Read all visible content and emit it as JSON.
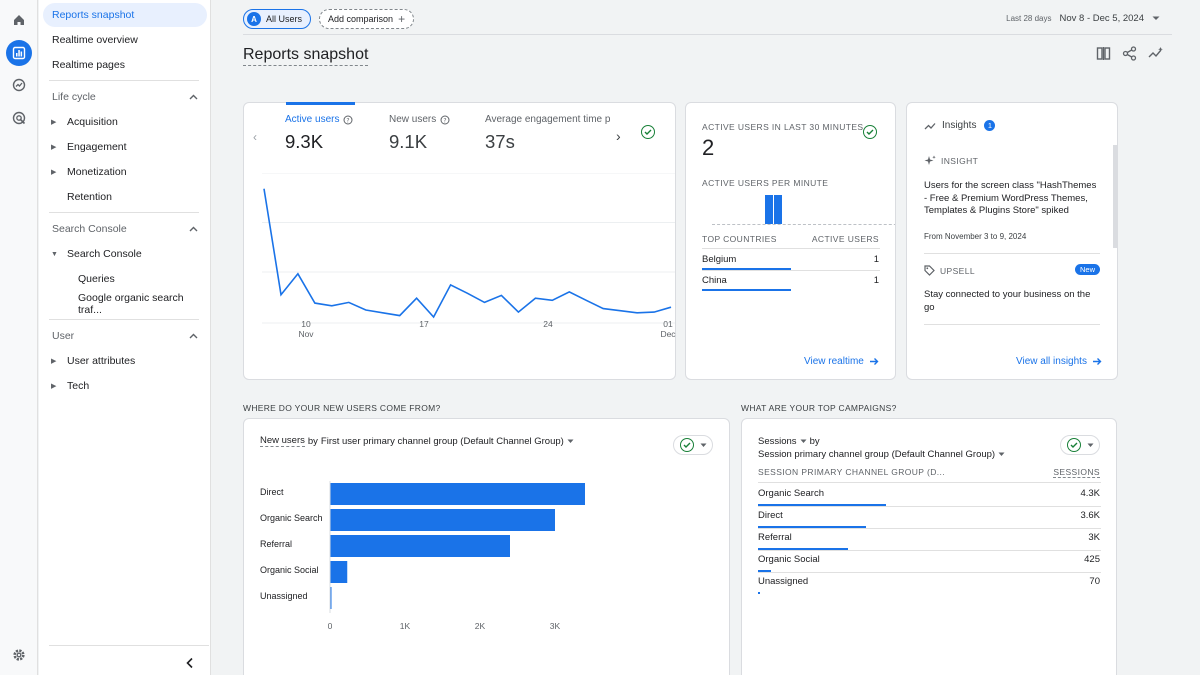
{
  "nav": {
    "items": [
      {
        "label": "Reports snapshot"
      },
      {
        "label": "Realtime overview"
      },
      {
        "label": "Realtime pages"
      }
    ],
    "lifecycle": {
      "title": "Life cycle",
      "items": [
        "Acquisition",
        "Engagement",
        "Monetization",
        "Retention"
      ]
    },
    "search_console": {
      "title": "Search Console",
      "group": "Search Console",
      "items": [
        "Queries",
        "Google organic search traf..."
      ]
    },
    "user": {
      "title": "User",
      "items": [
        "User attributes",
        "Tech"
      ]
    }
  },
  "topbar": {
    "all_users_avatar": "A",
    "all_users": "All Users",
    "add_comparison": "Add comparison",
    "date_label": "Last 28 days",
    "date_range": "Nov 8 - Dec 5, 2024"
  },
  "page_title": "Reports snapshot",
  "metrics": {
    "tabs": [
      {
        "label": "Active users",
        "value": "9.3K"
      },
      {
        "label": "New users",
        "value": "9.1K"
      },
      {
        "label": "Average engagement time p",
        "value": "37s"
      }
    ],
    "x_ticks": [
      {
        "day": "10",
        "month": "Nov"
      },
      {
        "day": "17",
        "month": ""
      },
      {
        "day": "24",
        "month": ""
      },
      {
        "day": "01",
        "month": "Dec"
      }
    ]
  },
  "chart_data": {
    "type": "line",
    "series": [
      {
        "values": [
          9200,
          1600,
          3100,
          1000,
          800,
          1050,
          500,
          300,
          100,
          1350,
          0,
          2300,
          1700,
          1050,
          1550,
          350,
          1350,
          1200,
          1800,
          1200,
          600,
          450,
          300,
          350,
          700
        ]
      }
    ],
    "x_ticks": [
      "10 Nov",
      "17",
      "24",
      "01 Dec"
    ]
  },
  "realtime": {
    "title": "ACTIVE USERS IN LAST 30 MINUTES",
    "value": "2",
    "per_minute_label": "ACTIVE USERS PER MINUTE",
    "col_country": "TOP COUNTRIES",
    "col_users": "ACTIVE USERS",
    "rows": [
      {
        "country": "Belgium",
        "users": "1"
      },
      {
        "country": "China",
        "users": "1"
      }
    ],
    "link": "View realtime"
  },
  "insights": {
    "title": "Insights",
    "badge": "1",
    "insight_label": "INSIGHT",
    "insight_text": "Users for the screen class \"HashThemes - Free & Premium WordPress Themes, Templates & Plugins Store\" spiked",
    "insight_date": "From November 3 to 9, 2024",
    "upsell_label": "UPSELL",
    "upsell_badge": "New",
    "upsell_text": "Stay connected to your business on the go",
    "link": "View all insights"
  },
  "new_users": {
    "section": "WHERE DO YOUR NEW USERS COME FROM?",
    "metric": "New users",
    "by": "by",
    "dimension": "First user primary channel group (Default Channel Group)",
    "categories": [
      "Direct",
      "Organic Search",
      "Referral",
      "Organic Social",
      "Unassigned"
    ],
    "values": [
      3400,
      3000,
      2400,
      230,
      10
    ],
    "x_ticks": [
      "0",
      "1K",
      "2K",
      "3K"
    ],
    "xmax": 4000
  },
  "campaigns": {
    "section": "WHAT ARE YOUR TOP CAMPAIGNS?",
    "metric": "Sessions",
    "by": "by",
    "dimension": "Session primary channel group (Default Channel Group)",
    "col_dim": "SESSION PRIMARY CHANNEL GROUP (D...",
    "col_val": "SESSIONS",
    "rows": [
      {
        "label": "Organic Search",
        "value": "4.3K",
        "share": 1.0
      },
      {
        "label": "Direct",
        "value": "3.6K",
        "share": 0.84
      },
      {
        "label": "Referral",
        "value": "3K",
        "share": 0.7
      },
      {
        "label": "Organic Social",
        "value": "425",
        "share": 0.1
      },
      {
        "label": "Unassigned",
        "value": "70",
        "share": 0.016
      }
    ]
  },
  "colors": {
    "accent": "#1a73e8",
    "success": "#188038"
  }
}
